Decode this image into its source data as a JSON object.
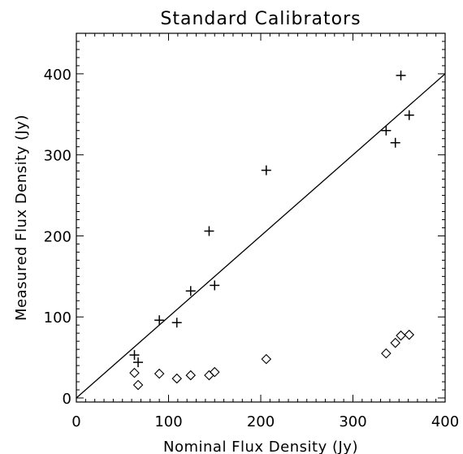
{
  "chart_data": {
    "type": "scatter",
    "title": "Standard Calibrators",
    "xlabel": "Nominal Flux Density (Jy)",
    "ylabel": "Measured Flux Density (Jy)",
    "xlim": [
      0,
      400
    ],
    "ylim": [
      -5,
      450
    ],
    "x_ticks": [
      0,
      100,
      200,
      300,
      400
    ],
    "y_ticks": [
      0,
      100,
      200,
      300,
      400
    ],
    "x_tick_labels": [
      "0",
      "100",
      "200",
      "300",
      "400"
    ],
    "y_tick_labels": [
      "0",
      "100",
      "200",
      "300",
      "400"
    ],
    "grid": false,
    "legend": "none",
    "reference_line": {
      "kind": "y = x",
      "from": [
        0,
        0
      ],
      "to": [
        400,
        400
      ]
    },
    "series": [
      {
        "marker": "plus",
        "points": [
          [
            63,
            53
          ],
          [
            67,
            44
          ],
          [
            90,
            96
          ],
          [
            109,
            93
          ],
          [
            124,
            132
          ],
          [
            144,
            206
          ],
          [
            150,
            139
          ],
          [
            206,
            281
          ],
          [
            336,
            330
          ],
          [
            346,
            315
          ],
          [
            352,
            398
          ],
          [
            361,
            349
          ]
        ]
      },
      {
        "marker": "diamond",
        "points": [
          [
            63,
            31
          ],
          [
            67,
            16
          ],
          [
            90,
            30
          ],
          [
            109,
            24
          ],
          [
            124,
            28
          ],
          [
            144,
            28
          ],
          [
            150,
            32
          ],
          [
            206,
            48
          ],
          [
            336,
            55
          ],
          [
            346,
            68
          ],
          [
            352,
            77
          ],
          [
            361,
            78
          ]
        ]
      }
    ],
    "colors": {
      "ink": "#000000",
      "background": "#ffffff"
    }
  }
}
